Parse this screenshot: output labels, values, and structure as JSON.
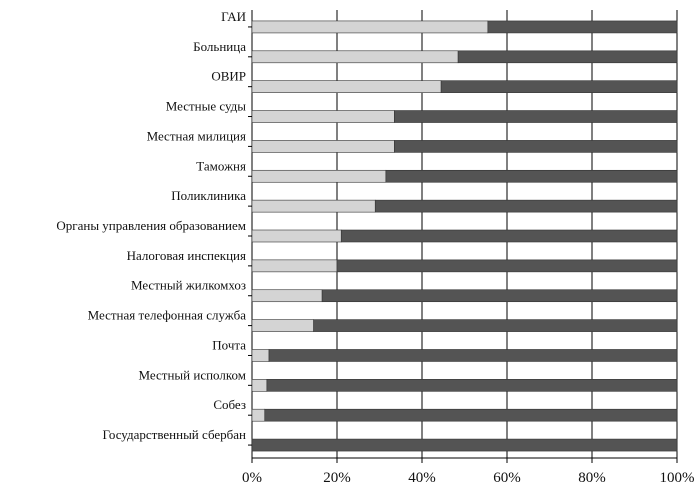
{
  "chart_data": {
    "type": "bar",
    "orientation": "horizontal",
    "stacked": true,
    "categories": [
      "ГАИ",
      "Больница",
      "ОВИР",
      "Местные суды",
      "Местная милиция",
      "Таможня",
      "Поликлиника",
      "Органы управления образованием",
      "Налоговая инспекция",
      "Местный жилкомхоз",
      "Местная телефонная служба",
      "Почта",
      "Местный исполком",
      "Собез",
      "Государственный сбербан"
    ],
    "series": [
      {
        "values": [
          55.5,
          48.5,
          44.5,
          33.5,
          33.5,
          31.5,
          29,
          21,
          20,
          16.5,
          14.5,
          4,
          3.5,
          3,
          0
        ]
      },
      {
        "values": [
          44.5,
          51.5,
          55.5,
          66.5,
          66.5,
          68.5,
          71,
          79,
          80,
          83.5,
          85.5,
          96,
          96.5,
          97,
          100
        ]
      }
    ],
    "xlim": [
      0,
      100
    ],
    "x_ticks": [
      "0%",
      "20%",
      "40%",
      "60%",
      "80%",
      "100%"
    ],
    "grid": true,
    "colors": {
      "series1": "#d4d4d4",
      "series2": "#545454",
      "grid": "#000000"
    }
  }
}
